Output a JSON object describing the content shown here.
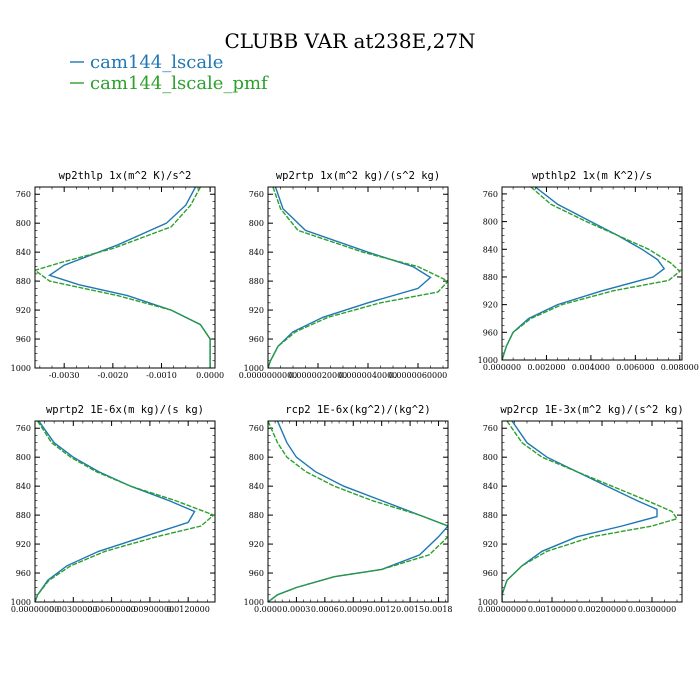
{
  "figure": {
    "title": "CLUBB VAR at238E,27N",
    "legend": [
      {
        "label": "cam144_lscale",
        "color": "#1f77b4",
        "dashed": false
      },
      {
        "label": "cam144_lscale_pmf",
        "color": "#2ca02c",
        "dashed": true
      }
    ]
  },
  "chart_data": [
    {
      "type": "line",
      "title": "wp2thlp   1x(m^2 K)/s^2",
      "ylim": [
        1000,
        750
      ],
      "ylabel_inverted": true,
      "yticks": [
        "760",
        "800",
        "840",
        "880",
        "920",
        "960",
        "1000"
      ],
      "xlim": [
        -0.0036,
        0.0001
      ],
      "xticks": [
        {
          "v": -0.003,
          "label": "-0.0030"
        },
        {
          "v": -0.002,
          "label": "-0.0020"
        },
        {
          "v": -0.001,
          "label": "-0.0010"
        },
        {
          "v": 0.0,
          "label": "0.0000"
        }
      ],
      "series": [
        {
          "name": "cam144_lscale",
          "y": [
            750,
            775,
            800,
            830,
            858,
            872,
            885,
            900,
            920,
            940,
            960,
            980,
            1000
          ],
          "x": [
            -0.0003,
            -0.0005,
            -0.0009,
            -0.0019,
            -0.003,
            -0.0033,
            -0.0027,
            -0.0017,
            -0.0008,
            -0.0002,
            0.0,
            0.0,
            0.0
          ]
        },
        {
          "name": "cam144_lscale_pmf",
          "y": [
            750,
            775,
            805,
            835,
            855,
            865,
            880,
            900,
            920,
            940,
            960,
            980,
            1000
          ],
          "x": [
            -0.0002,
            -0.0004,
            -0.0008,
            -0.002,
            -0.0031,
            -0.0036,
            -0.0033,
            -0.0019,
            -0.0008,
            -0.0002,
            0.0,
            0.0,
            0.0
          ]
        }
      ]
    },
    {
      "type": "line",
      "title": "wp2rtp   1x(m^2 kg)/(s^2 kg)",
      "ylim": [
        1000,
        750
      ],
      "yticks": [
        "760",
        "800",
        "840",
        "880",
        "920",
        "960",
        "1000"
      ],
      "xlim": [
        0.0,
        7.2e-06
      ],
      "xticks": [
        {
          "v": 0.0,
          "label": "0.0000000000"
        },
        {
          "v": 2e-06,
          "label": "0.0000020000"
        },
        {
          "v": 4e-06,
          "label": "0.0000040000"
        },
        {
          "v": 6e-06,
          "label": "0.0000060000"
        }
      ],
      "series": [
        {
          "name": "cam144_lscale",
          "y": [
            750,
            780,
            810,
            840,
            860,
            875,
            890,
            910,
            930,
            950,
            970,
            990,
            1000
          ],
          "x": [
            3e-07,
            6e-07,
            1.5e-06,
            4e-06,
            5.8e-06,
            6.5e-06,
            6e-06,
            4e-06,
            2.2e-06,
            1e-06,
            4e-07,
            1e-07,
            0.0
          ]
        },
        {
          "name": "cam144_lscale_pmf",
          "y": [
            750,
            780,
            810,
            840,
            860,
            880,
            895,
            910,
            930,
            950,
            970,
            990,
            1000
          ],
          "x": [
            2e-07,
            5e-07,
            1.2e-06,
            3.8e-06,
            6e-06,
            7.2e-06,
            6.8e-06,
            4.5e-06,
            2.4e-06,
            1.1e-06,
            4e-07,
            1e-07,
            0.0
          ]
        }
      ]
    },
    {
      "type": "line",
      "title": "wpthlp2   1x(m K^2)/s",
      "ylim": [
        1000,
        750
      ],
      "yticks": [
        "760",
        "800",
        "840",
        "880",
        "920",
        "960",
        "1000"
      ],
      "xlim": [
        0.0,
        0.0081
      ],
      "xticks": [
        {
          "v": 0.0,
          "label": "0.000000"
        },
        {
          "v": 0.002,
          "label": "0.002000"
        },
        {
          "v": 0.004,
          "label": "0.004000"
        },
        {
          "v": 0.006,
          "label": "0.006000"
        },
        {
          "v": 0.008,
          "label": "0.008000"
        }
      ],
      "series": [
        {
          "name": "cam144_lscale",
          "y": [
            750,
            775,
            800,
            820,
            840,
            855,
            868,
            880,
            900,
            920,
            940,
            960,
            980,
            1000
          ],
          "x": [
            0.0015,
            0.0025,
            0.004,
            0.0052,
            0.0063,
            0.007,
            0.0073,
            0.0068,
            0.0045,
            0.0025,
            0.0012,
            0.0005,
            0.0002,
            0.0
          ]
        },
        {
          "name": "cam144_lscale_pmf",
          "y": [
            750,
            775,
            800,
            820,
            840,
            860,
            872,
            885,
            900,
            920,
            940,
            960,
            980,
            1000
          ],
          "x": [
            0.0013,
            0.0022,
            0.0038,
            0.0052,
            0.0066,
            0.0076,
            0.008,
            0.0075,
            0.005,
            0.0027,
            0.0013,
            0.0005,
            0.0002,
            0.0
          ]
        }
      ]
    },
    {
      "type": "line",
      "title": "wprtp2   1E-6x(m kg)/(s kg)",
      "ylim": [
        1000,
        750
      ],
      "yticks": [
        "760",
        "800",
        "840",
        "880",
        "920",
        "960",
        "1000"
      ],
      "xlim": [
        0.0,
        0.0141
      ],
      "xticks": [
        {
          "v": 0.0,
          "label": "0.00000000"
        },
        {
          "v": 0.003,
          "label": "0.00300000"
        },
        {
          "v": 0.006,
          "label": "0.00600000"
        },
        {
          "v": 0.009,
          "label": "0.00900000"
        },
        {
          "v": 0.012,
          "label": "0.0120000"
        }
      ],
      "series": [
        {
          "name": "cam144_lscale",
          "y": [
            750,
            780,
            800,
            820,
            840,
            860,
            875,
            890,
            910,
            930,
            950,
            970,
            990,
            1000
          ],
          "x": [
            0.0003,
            0.0015,
            0.003,
            0.005,
            0.0075,
            0.0105,
            0.0125,
            0.012,
            0.0085,
            0.005,
            0.0025,
            0.001,
            0.0002,
            0.0
          ]
        },
        {
          "name": "cam144_lscale_pmf",
          "y": [
            750,
            780,
            800,
            820,
            840,
            860,
            880,
            895,
            910,
            930,
            950,
            970,
            990,
            1000
          ],
          "x": [
            0.0002,
            0.0013,
            0.0028,
            0.0048,
            0.0075,
            0.011,
            0.014,
            0.013,
            0.0095,
            0.0055,
            0.0028,
            0.0011,
            0.0002,
            0.0
          ]
        }
      ]
    },
    {
      "type": "line",
      "title": "rcp2   1E-6x(kg^2)/(kg^2)",
      "ylim": [
        1000,
        750
      ],
      "yticks": [
        "760",
        "800",
        "840",
        "880",
        "920",
        "960",
        "1000"
      ],
      "xlim": [
        0.0,
        0.0019
      ],
      "xticks": [
        {
          "v": 0.0,
          "label": "0.0000"
        },
        {
          "v": 0.0003,
          "label": "0.0003"
        },
        {
          "v": 0.0006,
          "label": "0.0006"
        },
        {
          "v": 0.0009,
          "label": "0.0009"
        },
        {
          "v": 0.0012,
          "label": "0.0012"
        },
        {
          "v": 0.0015,
          "label": "0.0015"
        },
        {
          "v": 0.0018,
          "label": "0.0018"
        }
      ],
      "series": [
        {
          "name": "cam144_lscale",
          "y": [
            750,
            780,
            800,
            820,
            840,
            860,
            880,
            895,
            910,
            935,
            955,
            965,
            980,
            990,
            1000
          ],
          "x": [
            0.0001,
            0.0002,
            0.0003,
            0.0005,
            0.0008,
            0.0012,
            0.0016,
            0.0019,
            0.0018,
            0.0016,
            0.0012,
            0.0007,
            0.0003,
            0.0001,
            0.0
          ]
        },
        {
          "name": "cam144_lscale_pmf",
          "y": [
            750,
            780,
            800,
            820,
            840,
            860,
            880,
            895,
            910,
            935,
            955,
            965,
            980,
            990,
            1000
          ],
          "x": [
            0.0,
            0.0001,
            0.0002,
            0.0004,
            0.0007,
            0.0011,
            0.0016,
            0.0019,
            0.0019,
            0.0017,
            0.0012,
            0.0007,
            0.0003,
            0.0001,
            0.0
          ]
        }
      ]
    },
    {
      "type": "line",
      "title": "wp2rcp   1E-3x(m^2 kg)/(s^2 kg)",
      "ylim": [
        1000,
        750
      ],
      "yticks": [
        "760",
        "800",
        "840",
        "880",
        "920",
        "960",
        "1000"
      ],
      "xlim": [
        0.0,
        0.0036
      ],
      "xticks": [
        {
          "v": 0.0,
          "label": "0.00000000"
        },
        {
          "v": 0.001,
          "label": "0.00100000"
        },
        {
          "v": 0.002,
          "label": "0.00200000"
        },
        {
          "v": 0.003,
          "label": "0.00300000"
        }
      ],
      "series": [
        {
          "name": "cam144_lscale",
          "y": [
            750,
            780,
            800,
            820,
            840,
            860,
            872,
            882,
            895,
            910,
            930,
            950,
            970,
            990,
            1000
          ],
          "x": [
            0.0002,
            0.0005,
            0.0009,
            0.0015,
            0.0021,
            0.0027,
            0.0031,
            0.0031,
            0.0024,
            0.0015,
            0.0008,
            0.0004,
            0.0001,
            0.0,
            0.0
          ]
        },
        {
          "name": "cam144_lscale_pmf",
          "y": [
            750,
            780,
            800,
            820,
            840,
            860,
            875,
            885,
            895,
            910,
            930,
            950,
            970,
            990,
            1000
          ],
          "x": [
            0.0001,
            0.0004,
            0.0008,
            0.0015,
            0.0022,
            0.0029,
            0.0034,
            0.0035,
            0.003,
            0.0018,
            0.0009,
            0.0004,
            0.0001,
            0.0,
            0.0
          ]
        }
      ]
    }
  ]
}
